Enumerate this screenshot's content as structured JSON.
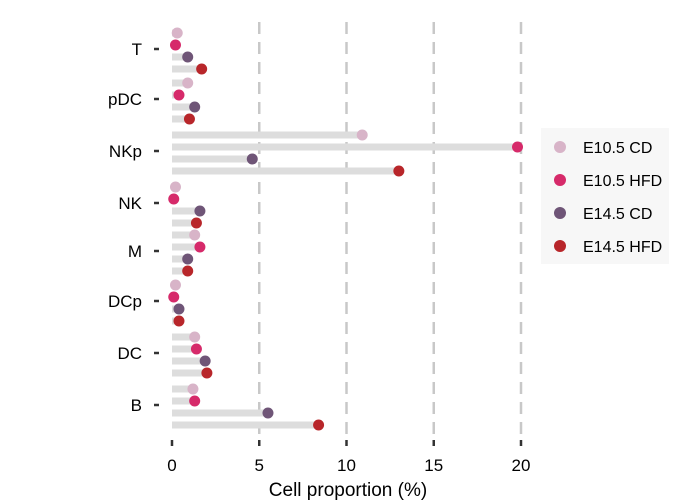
{
  "chart_data": {
    "type": "lollipop",
    "orientation": "horizontal",
    "categories": [
      "T",
      "pDC",
      "NKp",
      "NK",
      "M",
      "DCp",
      "DC",
      "B"
    ],
    "series": [
      {
        "name": "E10.5 CD",
        "color": "#d8b4c8",
        "values": [
          0.3,
          0.9,
          10.9,
          0.2,
          1.3,
          0.2,
          1.3,
          1.2
        ]
      },
      {
        "name": "E10.5 HFD",
        "color": "#d62a6a",
        "values": [
          0.2,
          0.4,
          19.8,
          0.1,
          1.6,
          0.1,
          1.4,
          1.3
        ]
      },
      {
        "name": "E14.5 CD",
        "color": "#6f5577",
        "values": [
          0.9,
          1.3,
          4.6,
          1.6,
          0.9,
          0.4,
          1.9,
          5.5
        ]
      },
      {
        "name": "E14.5 HFD",
        "color": "#b8262a",
        "values": [
          1.7,
          1.0,
          13.0,
          1.4,
          0.9,
          0.4,
          2.0,
          8.4
        ]
      }
    ],
    "xlabel": "Cell proportion (%)",
    "ylabel": "",
    "xlim": [
      0,
      21
    ],
    "xticks": [
      0,
      5,
      10,
      15,
      20
    ],
    "grid": "vertical-dashed",
    "legend": {
      "position": "right"
    },
    "stem_color": "#dddddd",
    "grid_color": "#c8c8c8"
  }
}
